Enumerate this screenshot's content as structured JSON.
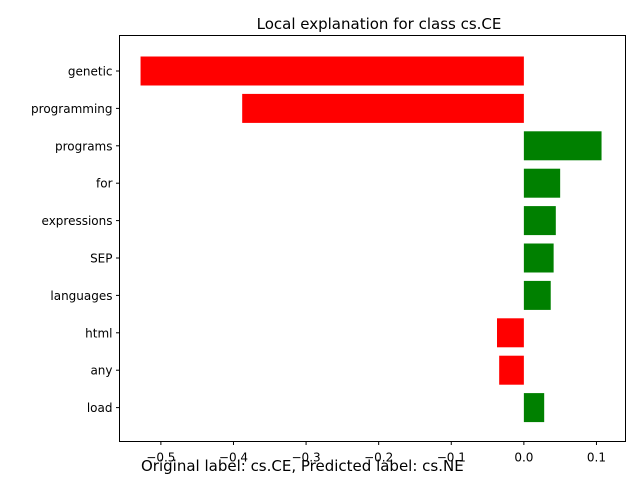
{
  "chart_data": {
    "type": "bar",
    "orientation": "horizontal",
    "title": "Local explanation for class cs.CE",
    "xlabel": "",
    "ylabel": "",
    "xlim": [
      -0.557,
      0.14
    ],
    "xticks": [
      -0.5,
      -0.4,
      -0.3,
      -0.2,
      -0.1,
      0.0,
      0.1
    ],
    "xtick_labels": [
      "−0.5",
      "−0.4",
      "−0.3",
      "−0.2",
      "−0.1",
      "0.0",
      "0.1"
    ],
    "categories": [
      "genetic",
      "programming",
      "programs",
      "for",
      "expressions",
      "SEP",
      "languages",
      "html",
      "any",
      "load"
    ],
    "values": [
      -0.528,
      -0.388,
      0.107,
      0.05,
      0.044,
      0.041,
      0.037,
      -0.037,
      -0.034,
      0.028
    ],
    "colors": {
      "positive": "#008000",
      "negative": "#ff0000"
    },
    "grid": false,
    "caption": "Original label: cs.CE, Predicted label: cs.NE"
  }
}
